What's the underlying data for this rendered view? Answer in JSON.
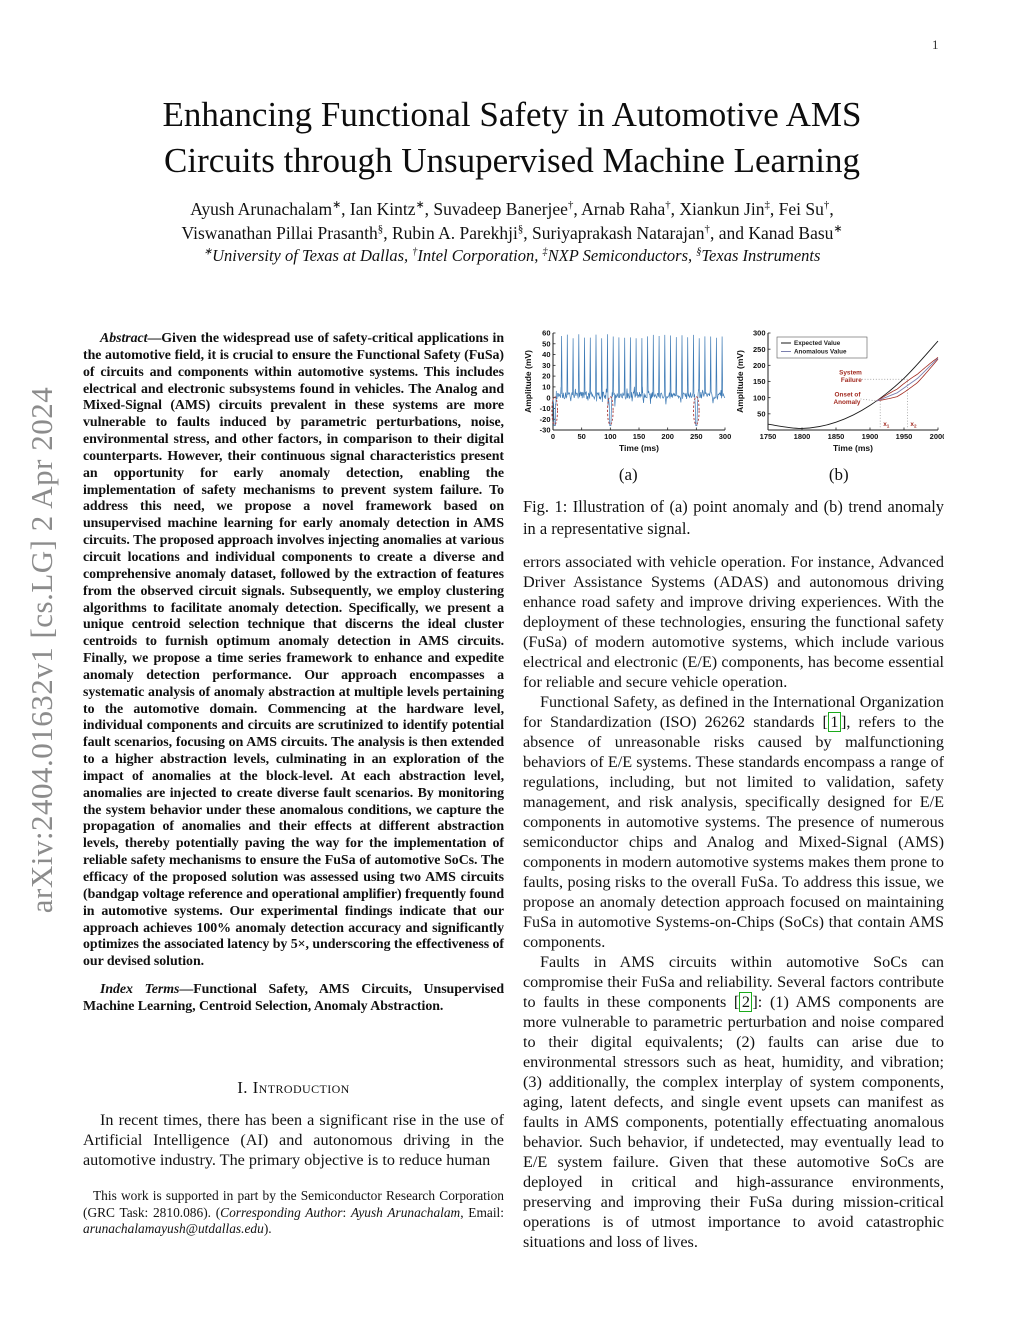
{
  "page": {
    "number": "1",
    "arxiv_watermark": "arXiv:2404.01632v1 [cs.LG] 2 Apr 2024"
  },
  "header": {
    "title_line1": "Enhancing Functional Safety in Automotive AMS",
    "title_line2": "Circuits through Unsupervised Machine Learning",
    "authors_line1": [
      {
        "t": "Ayush Arunachalam"
      },
      {
        "t": "∗",
        "style": "sup"
      },
      {
        "t": ", Ian Kintz"
      },
      {
        "t": "∗",
        "style": "sup"
      },
      {
        "t": ", Suvadeep Banerjee"
      },
      {
        "t": "†",
        "style": "sup"
      },
      {
        "t": ", Arnab Raha"
      },
      {
        "t": "†",
        "style": "sup"
      },
      {
        "t": ", Xiankun Jin"
      },
      {
        "t": "‡",
        "style": "sup"
      },
      {
        "t": ", Fei Su"
      },
      {
        "t": "†",
        "style": "sup"
      },
      {
        "t": ","
      }
    ],
    "authors_line2": [
      {
        "t": "Viswanathan Pillai Prasanth"
      },
      {
        "t": "§",
        "style": "sup"
      },
      {
        "t": ", Rubin A. Parekhji"
      },
      {
        "t": "§",
        "style": "sup"
      },
      {
        "t": ", Suriyaprakash Natarajan"
      },
      {
        "t": "†",
        "style": "sup"
      },
      {
        "t": ", and Kanad Basu"
      },
      {
        "t": "∗",
        "style": "sup"
      }
    ],
    "affiliation": [
      {
        "t": "∗",
        "style": "sup"
      },
      {
        "t": "University of Texas at Dallas, "
      },
      {
        "t": "†",
        "style": "sup"
      },
      {
        "t": "Intel Corporation, "
      },
      {
        "t": "‡",
        "style": "sup"
      },
      {
        "t": "NXP Semiconductors, "
      },
      {
        "t": "§",
        "style": "sup"
      },
      {
        "t": "Texas Instruments"
      }
    ]
  },
  "left_column": {
    "abstract_label": "Abstract",
    "abstract_text": "—Given the widespread use of safety-critical applications in the automotive field, it is crucial to ensure the Functional Safety (FuSa) of circuits and components within automotive systems. This includes electrical and electronic subsystems found in vehicles. The Analog and Mixed-Signal (AMS) circuits prevalent in these systems are more vulnerable to faults induced by parametric perturbations, noise, environmental stress, and other factors, in comparison to their digital counterparts. However, their continuous signal characteristics present an opportunity for early anomaly detection, enabling the implementation of safety mechanisms to prevent system failure. To address this need, we propose a novel framework based on unsupervised machine learning for early anomaly detection in AMS circuits. The proposed approach involves injecting anomalies at various circuit locations and individual components to create a diverse and comprehensive anomaly dataset, followed by the extraction of features from the observed circuit signals. Subsequently, we employ clustering algorithms to facilitate anomaly detection. Specifically, we present a unique centroid selection technique that discerns the ideal cluster centroids to furnish optimum anomaly detection in AMS circuits. Finally, we propose a time series framework to enhance and expedite anomaly detection performance. Our approach encompasses a systematic analysis of anomaly abstraction at multiple levels pertaining to the automotive domain. Commencing at the hardware level, individual components and circuits are scrutinized to identify potential fault scenarios, focusing on AMS circuits. The analysis is then extended to a higher abstraction levels, culminating in an exploration of the impact of anomalies at the block-level. At each abstraction level, anomalies are injected to create diverse fault scenarios. By monitoring the system behavior under these anomalous conditions, we capture the propagation of anomalies and their effects at different abstraction levels, thereby potentially paving the way for the implementation of reliable safety mechanisms to ensure the FuSa of automotive SoCs. The efficacy of the proposed solution was assessed using two AMS circuits (bandgap voltage reference and operational amplifier) frequently found in automotive systems. Our experimental findings indicate that our approach achieves 100% anomaly detection accuracy and significantly optimizes the associated latency by 5×, underscoring the effectiveness of our devised solution.",
    "index_terms_label": "Index Terms",
    "index_terms_text": "—Functional Safety, AMS Circuits, Unsupervised Machine Learning, Centroid Selection, Anomaly Abstraction.",
    "section1_heading": "I. Introduction",
    "intro_paragraph": "In recent times, there has been a significant rise in the use of Artificial Intelligence (AI) and autonomous driving in the automotive industry. The primary objective is to reduce human",
    "footnote": [
      {
        "t": "This work is supported in part by the Semiconductor Research Corporation (GRC Task: 2810.086). ("
      },
      {
        "t": "Corresponding Author",
        "style": "i"
      },
      {
        "t": ": "
      },
      {
        "t": "Ayush Arunachalam",
        "style": "i"
      },
      {
        "t": ", Email: "
      },
      {
        "t": "arunachalamayush@utdallas.edu",
        "style": "i"
      },
      {
        "t": ")."
      }
    ]
  },
  "figure1": {
    "label_a": "(a)",
    "label_b": "(b)",
    "caption": "Fig. 1: Illustration of (a) point anomaly and (b) trend anomaly in a representative signal."
  },
  "right_column": {
    "para1": "errors associated with vehicle operation. For instance, Advanced Driver Assistance Systems (ADAS) and autonomous driving enhance road safety and improve driving experiences. With the deployment of these technologies, ensuring the functional safety (FuSa) of modern automotive systems, which include various electrical and electronic (E/E) components, has become essential for reliable and secure vehicle operation.",
    "para2": [
      {
        "t": "Functional Safety, as defined in the International Organization for Standardization (ISO) 26262 standards ["
      },
      {
        "t": "1",
        "style": "cite"
      },
      {
        "t": "], refers to the absence of unreasonable risks caused by malfunctioning behaviors of E/E systems. These standards encompass a range of regulations, including, but not limited to validation, safety management, and risk analysis, specifically designed for E/E components in automotive systems. The presence of numerous semiconductor chips and Analog and Mixed-Signal (AMS) components in modern automotive systems makes them prone to faults, posing risks to the overall FuSa. To address this issue, we propose an anomaly detection approach focused on maintaining FuSa in automotive Systems-on-Chips (SoCs) that contain AMS components."
      }
    ],
    "para3": [
      {
        "t": "Faults in AMS circuits within automotive SoCs can compromise their FuSa and reliability. Several factors contribute to faults in these components ["
      },
      {
        "t": "2",
        "style": "cite"
      },
      {
        "t": "]: (1) AMS components are more vulnerable to parametric perturbation and noise compared to their digital equivalents; (2) faults can arise due to environmental stressors such as heat, humidity, and vibration; (3) additionally, the complex interplay of system components, aging, latent defects, and single event upsets can manifest as faults in AMS components, potentially effectuating anomalous behavior. Such behavior, if undetected, may eventually lead to E/E system failure. Given that these automotive SoCs are deployed in critical and high-assurance environments, preserving and improving their FuSa during mission-critical operations is of utmost importance to avoid catastrophic situations and loss of lives."
      }
    ]
  },
  "chart_data": [
    {
      "type": "line",
      "subplot": "a",
      "description": "Periodic spiky signal with three circled point anomalies (downward dips)",
      "xlabel": "Time (ms)",
      "ylabel": "Amplitude (mV)",
      "xlim": [
        0,
        300
      ],
      "ylim": [
        -30,
        60
      ],
      "xticks": [
        0,
        50,
        100,
        150,
        200,
        250,
        300
      ],
      "yticks": [
        -30,
        -20,
        -10,
        0,
        10,
        20,
        30,
        40,
        50,
        60
      ],
      "spike_period_ms": 10,
      "spike_peak_mV": 57,
      "baseline_mV": 2,
      "noise_mV": 6,
      "anomaly_times_ms": [
        3,
        100,
        250
      ],
      "anomaly_dip_mV": -26,
      "signal_color": "#3d7ab5",
      "anomaly_color": "#b14a4a",
      "grid": false
    },
    {
      "type": "line",
      "subplot": "b",
      "description": "Trend anomaly: anomalous value diverges below expected value",
      "xlabel": "Time (ms)",
      "ylabel": "Amplitude (mV)",
      "xlim": [
        1750,
        2000
      ],
      "ylim": [
        0,
        300
      ],
      "xticks": [
        1750,
        1800,
        1850,
        1900,
        1950,
        2000
      ],
      "yticks": [
        50,
        100,
        150,
        200,
        250,
        300
      ],
      "series": [
        {
          "name": "Expected Value",
          "color": "#1a1a1a",
          "x": [
            1750,
            1800,
            1850,
            1900,
            1950,
            2000
          ],
          "y": [
            18,
            5,
            24,
            76,
            160,
            275
          ]
        },
        {
          "name": "Anomalous Value",
          "color": "#7b7fae",
          "x": [
            1910,
            1940,
            1970,
            2000
          ],
          "y": [
            90,
            115,
            160,
            222
          ]
        }
      ],
      "legend": {
        "position": "top-left",
        "entries": [
          "Expected Value",
          "Anomalous Value"
        ]
      },
      "annotations": {
        "system_failure_lines": [
          "System",
          "Failure"
        ],
        "onset_lines": [
          "Onset of",
          "Anomaly"
        ],
        "x1_label": "x",
        "x1_sub": "1",
        "x1_ms": 1915,
        "x2_label": "x",
        "x2_sub": "2",
        "x2_ms": 1955,
        "onset_mV": 90,
        "failure_mV": 157,
        "label_color": "#a22b21",
        "lens_half_width_mV": 14
      },
      "grid": false
    }
  ]
}
